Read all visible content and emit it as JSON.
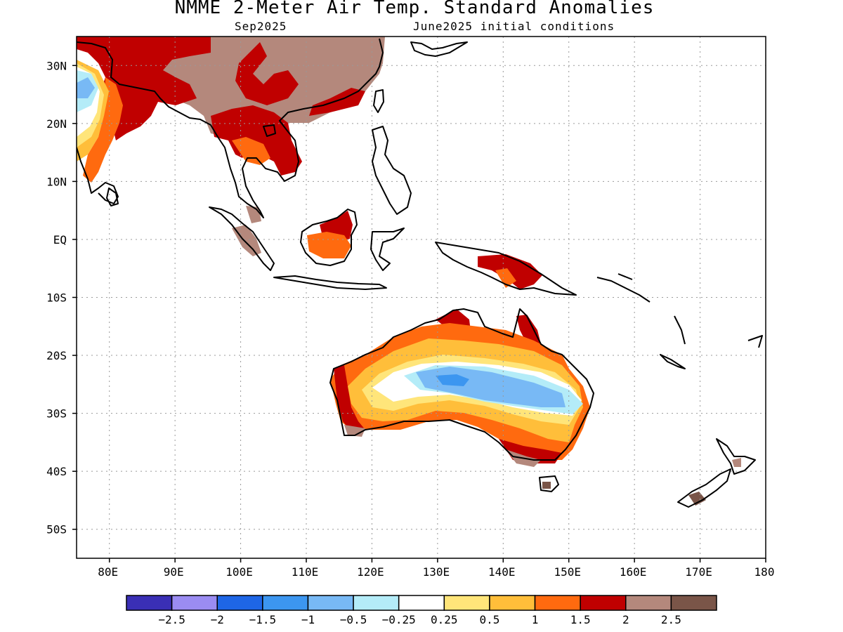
{
  "title": "NMME 2-Meter Air Temp. Standard Anomalies",
  "subtitle_left": "Sep2025",
  "subtitle_right": "June2025 initial conditions",
  "map": {
    "lon_range": [
      75,
      180
    ],
    "lat_range": [
      -55,
      35
    ],
    "lon_ticks": [
      {
        "value": 80,
        "label": "80E"
      },
      {
        "value": 90,
        "label": "90E"
      },
      {
        "value": 100,
        "label": "100E"
      },
      {
        "value": 110,
        "label": "110E"
      },
      {
        "value": 120,
        "label": "120E"
      },
      {
        "value": 130,
        "label": "130E"
      },
      {
        "value": 140,
        "label": "140E"
      },
      {
        "value": 150,
        "label": "150E"
      },
      {
        "value": 160,
        "label": "160E"
      },
      {
        "value": 170,
        "label": "170E"
      },
      {
        "value": 180,
        "label": "180"
      }
    ],
    "lat_ticks": [
      {
        "value": 30,
        "label": "30N"
      },
      {
        "value": 20,
        "label": "20N"
      },
      {
        "value": 10,
        "label": "10N"
      },
      {
        "value": 0,
        "label": "EQ"
      },
      {
        "value": -10,
        "label": "10S"
      },
      {
        "value": -20,
        "label": "20S"
      },
      {
        "value": -30,
        "label": "30S"
      },
      {
        "value": -40,
        "label": "40S"
      },
      {
        "value": -50,
        "label": "50S"
      }
    ],
    "grid": "dotted"
  },
  "colors": {
    "lt_-2.5": "#3a2fb5",
    "-2.5_-2": "#9b8cf2",
    "-2_-1.5": "#1e66e6",
    "-1.5_-1": "#3c96f0",
    "-1_-0.5": "#78b9f5",
    "-0.5_-0.25": "#b4ecf8",
    "-0.25_0.25": "#ffffff",
    "0.25_0.5": "#ffe57a",
    "0.5_1": "#ffbe3a",
    "1_1.5": "#ff6a0f",
    "1.5_2": "#c00000",
    "2_2.5": "#b4887c",
    "gt_2.5": "#7a5548"
  },
  "legend": {
    "boundaries": [
      "-2.5",
      "-2",
      "-1.5",
      "-1",
      "-0.5",
      "-0.25",
      "0.25",
      "0.5",
      "1",
      "1.5",
      "2",
      "2.5"
    ],
    "swatches": [
      "#3a2fb5",
      "#9b8cf2",
      "#1e66e6",
      "#3c96f0",
      "#78b9f5",
      "#b4ecf8",
      "#ffffff",
      "#ffe57a",
      "#ffbe3a",
      "#ff6a0f",
      "#c00000",
      "#b4887c",
      "#7a5548"
    ]
  }
}
